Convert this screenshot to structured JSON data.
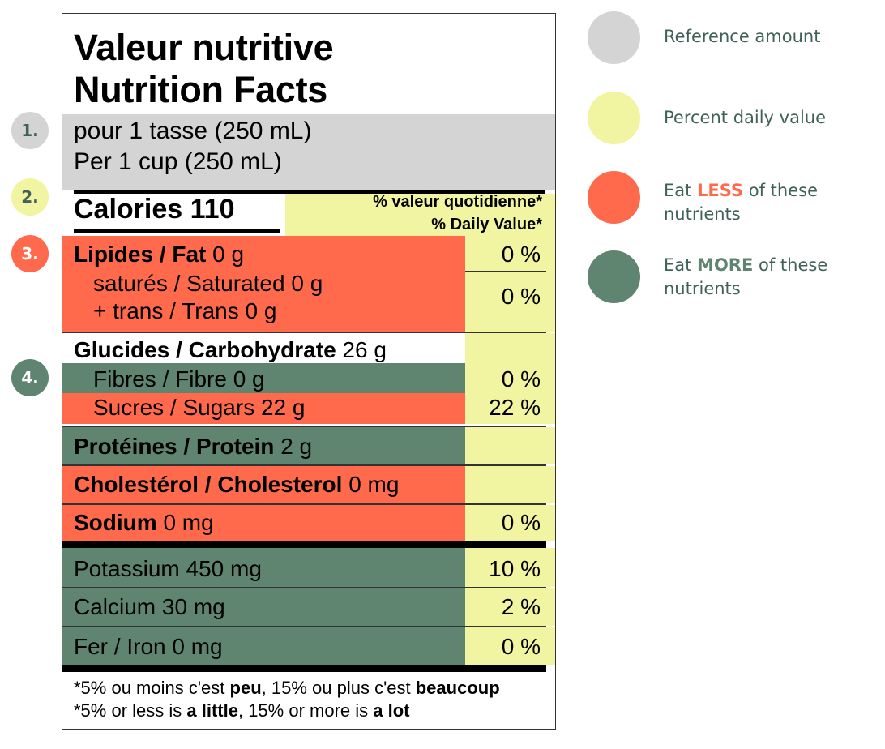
{
  "markers": [
    "1.",
    "2.",
    "3.",
    "4."
  ],
  "label": {
    "title_fr": "Valeur nutritive",
    "title_en": "Nutrition Facts",
    "serving_fr": "pour 1 tasse (250 mL)",
    "serving_en": "Per 1 cup (250 mL)",
    "calories": "Calories 110",
    "dv_fr": "% valeur quotidienne*",
    "dv_en": "% Daily Value*",
    "fat_name": "Lipides / Fat",
    "fat_amount": "0 g",
    "fat_pct": "0 %",
    "sat": "saturés / Saturated 0 g",
    "trans": "+ trans / Trans 0 g",
    "sat_trans_pct": "0 %",
    "carb_name": "Glucides / Carbohydrate",
    "carb_amount": "26 g",
    "fibre": "Fibres / Fibre 0 g",
    "fibre_pct": "0 %",
    "sugars": "Sucres / Sugars 22 g",
    "sugars_pct": "22 %",
    "protein_name": "Protéines / Protein",
    "protein_amount": "2 g",
    "chol_name": "Cholestérol / Cholesterol",
    "chol_amount": "0 mg",
    "sodium_name": "Sodium",
    "sodium_amount": "0 mg",
    "sodium_pct": "0 %",
    "potassium": "Potassium 450 mg",
    "potassium_pct": "10 %",
    "calcium": "Calcium 30 mg",
    "calcium_pct": "2 %",
    "iron": "Fer / Iron 0 mg",
    "iron_pct": "0 %",
    "foot_fr_a": "*5% ou moins c'est ",
    "foot_fr_b": "peu",
    "foot_fr_c": ", 15% ou plus c'est ",
    "foot_fr_d": "beaucoup",
    "foot_en_a": "*5% or less is ",
    "foot_en_b": "a little",
    "foot_en_c": ", 15% or more is ",
    "foot_en_d": "a lot"
  },
  "legend": {
    "reference": "Reference amount",
    "percent": "Percent daily value",
    "less_a": "Eat ",
    "less_b": "LESS",
    "less_c": " of these",
    "less_d": "nutrients",
    "more_a": "Eat ",
    "more_b": "MORE",
    "more_c": " of these",
    "more_d": "nutrients"
  },
  "colors": {
    "grey": "#d4d4d4",
    "yellow": "#f1f4a0",
    "red": "#ff6a4d",
    "green": "#5f8470",
    "legend_text": "#3f6159"
  }
}
